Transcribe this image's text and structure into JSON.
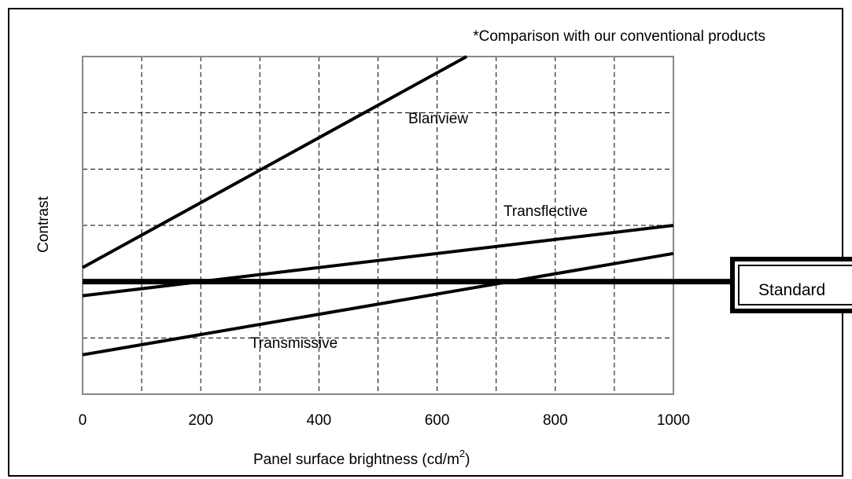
{
  "chart_data": {
    "type": "line",
    "note": "*Comparison with our conventional products",
    "xlabel": "Panel surface brightness (cd/m",
    "xlabel_sup": "2",
    "xlabel_close": ")",
    "ylabel": "Contrast",
    "xlim": [
      0,
      1000
    ],
    "xticks": [
      0,
      200,
      400,
      600,
      800,
      1000
    ],
    "grid": true,
    "series": [
      {
        "name": "Blanview",
        "x": [
          0,
          650
        ],
        "y": [
          2.25,
          6.0
        ]
      },
      {
        "name": "Transflective",
        "x": [
          0,
          1000
        ],
        "y": [
          1.75,
          3.0
        ]
      },
      {
        "name": "Transmissive",
        "x": [
          0,
          1000
        ],
        "y": [
          0.7,
          2.5
        ]
      },
      {
        "name": "Standard",
        "x": [
          0,
          1000
        ],
        "y": [
          2.0,
          2.0
        ]
      }
    ],
    "ylim": [
      0,
      6
    ]
  }
}
